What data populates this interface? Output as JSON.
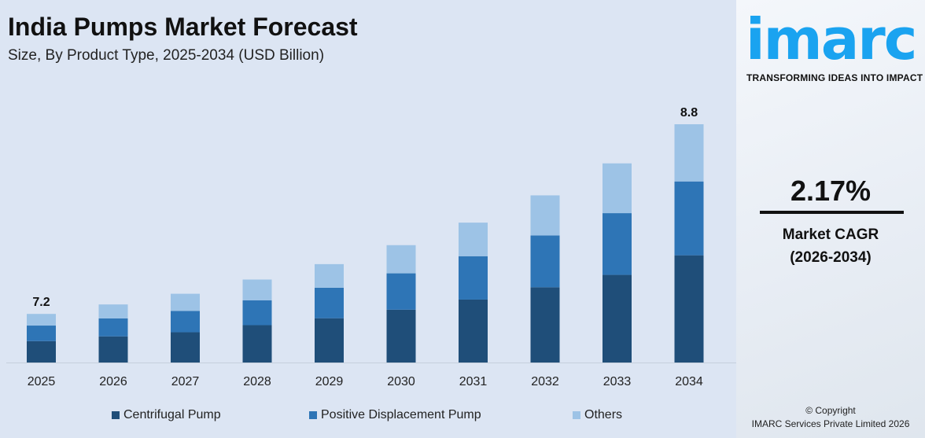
{
  "header": {
    "title": "India Pumps Market Forecast",
    "subtitle": "Size, By Product Type, 2025-2034 (USD Billion)"
  },
  "colors": {
    "centrifugal": "#1f4e79",
    "positive_displacement": "#2e75b6",
    "others": "#9dc3e6",
    "brand": "#1aa3f0"
  },
  "chart_data": {
    "type": "bar",
    "stacked": true,
    "title": "India Pumps Market Forecast",
    "subtitle": "Size, By Product Type, 2025-2034 (USD Billion)",
    "categories": [
      "2025",
      "2026",
      "2027",
      "2028",
      "2029",
      "2030",
      "2031",
      "2032",
      "2033",
      "2034"
    ],
    "totals": [
      7.2,
      7.28,
      7.37,
      7.49,
      7.62,
      7.78,
      7.97,
      8.2,
      8.47,
      8.8
    ],
    "series": [
      {
        "name": "Centrifugal Pump",
        "share": [
          0.44,
          0.45,
          0.44,
          0.45,
          0.45,
          0.45,
          0.45,
          0.45,
          0.44,
          0.45
        ]
      },
      {
        "name": "Positive Displacement Pump",
        "share": [
          0.32,
          0.31,
          0.31,
          0.3,
          0.31,
          0.31,
          0.31,
          0.31,
          0.31,
          0.31
        ]
      },
      {
        "name": "Others",
        "share": [
          0.24,
          0.24,
          0.25,
          0.25,
          0.24,
          0.24,
          0.24,
          0.24,
          0.25,
          0.24
        ]
      }
    ],
    "data_labels": {
      "2025": "7.2",
      "2034": "8.8"
    },
    "ylim": [
      6.79,
      8.8
    ],
    "grid": false,
    "legend": "bottom"
  },
  "side": {
    "logo": "imarc",
    "tagline": "TRANSFORMING IDEAS INTO IMPACT",
    "cagr_value": "2.17%",
    "cagr_label": "Market CAGR",
    "cagr_period": "(2026-2034)",
    "copyright": "© Copyright",
    "company": "IMARC Services Private Limited 2026"
  }
}
